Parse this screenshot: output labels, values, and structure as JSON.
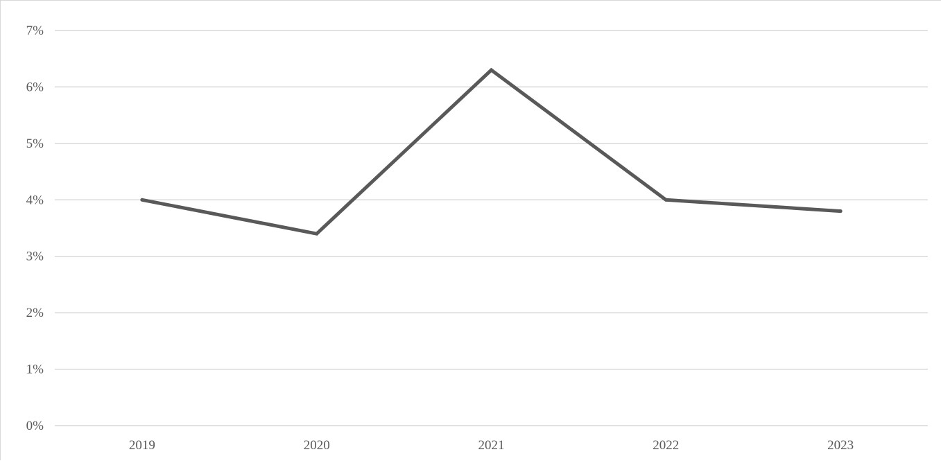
{
  "chart_data": {
    "type": "line",
    "categories": [
      "2019",
      "2020",
      "2021",
      "2022",
      "2023"
    ],
    "series": [
      {
        "values": [
          4.0,
          3.4,
          6.3,
          4.0,
          3.8
        ],
        "color": "#595959"
      }
    ],
    "ylim": [
      0,
      7
    ],
    "yticks": [
      0,
      1,
      2,
      3,
      4,
      5,
      6,
      7
    ],
    "ytick_labels": [
      "0%",
      "1%",
      "2%",
      "3%",
      "4%",
      "5%",
      "6%",
      "7%"
    ],
    "y_unit": "%",
    "grid": true,
    "legend": "none",
    "title": "",
    "xlabel": "",
    "ylabel": ""
  }
}
